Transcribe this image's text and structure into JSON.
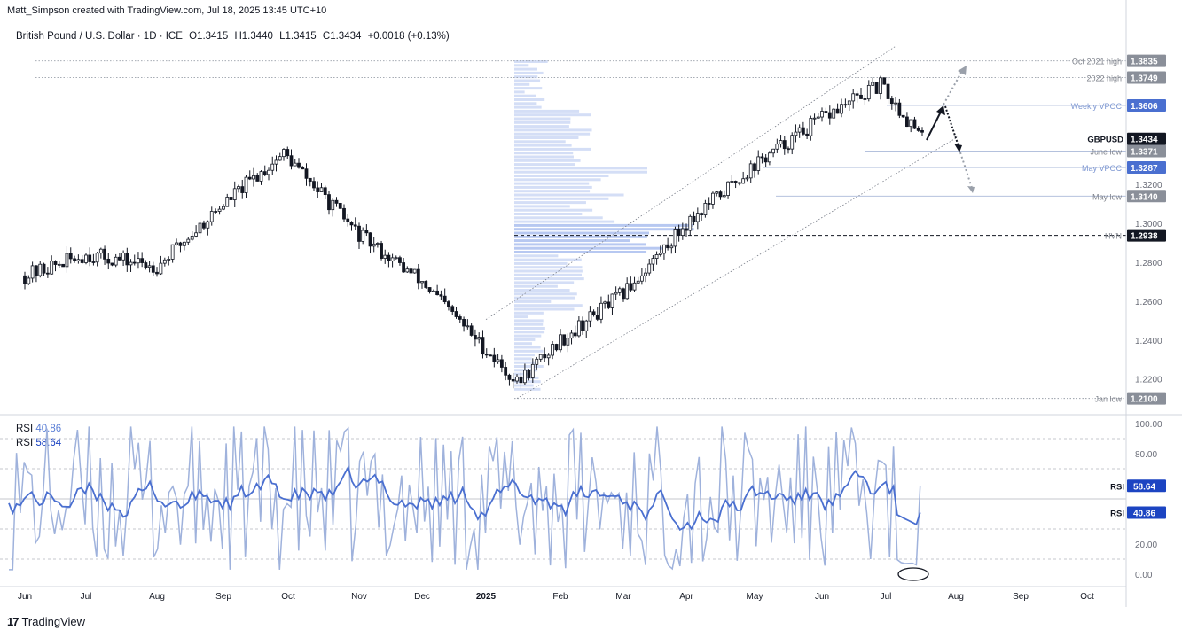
{
  "header": {
    "created_by": "Matt_Simpson created with TradingView.com, Jul 18, 2025 13:45 UTC+10",
    "symbol_line": "British Pound / U.S. Dollar · 1D · ICE",
    "open": "O1.3415",
    "high": "H1.3440",
    "low": "L1.3415",
    "close": "C1.3434",
    "change": "+0.0018 (+0.13%)"
  },
  "footer": {
    "brand": "TradingView"
  },
  "colors": {
    "candle": "#131722",
    "volume_profile": "#9fb6ec",
    "rsi_light": "#9fb2dc",
    "rsi_dark": "#4a6fd0",
    "label_bg": "#8a8f99",
    "current_bg": "#131722"
  },
  "chart_data": [
    {
      "type": "candlestick",
      "title": "British Pound / U.S. Dollar · 1D · ICE",
      "x_ticks": [
        "Jun",
        "Jul",
        "Aug",
        "Sep",
        "Oct",
        "Nov",
        "Dec",
        "2025",
        "Feb",
        "Mar",
        "Apr",
        "May",
        "Jun",
        "Jul",
        "Aug",
        "Sep",
        "Oct"
      ],
      "y_ticks": [
        "1.2200",
        "1.2400",
        "1.2600",
        "1.2800",
        "1.3000",
        "1.3200"
      ],
      "ylim": [
        1.203,
        1.392
      ],
      "series_name": "GBPUSD",
      "key_points": [
        {
          "month": "Jun",
          "price": 1.273
        },
        {
          "month": "Jul",
          "price": 1.284
        },
        {
          "month": "Aug",
          "price": 1.278
        },
        {
          "month": "Sep",
          "price": 1.31
        },
        {
          "month": "Oct",
          "price": 1.336
        },
        {
          "month": "Nov",
          "price": 1.294
        },
        {
          "month": "Dec",
          "price": 1.27
        },
        {
          "month": "2025",
          "price": 1.218
        },
        {
          "month": "Feb",
          "price": 1.24
        },
        {
          "month": "Mar",
          "price": 1.264
        },
        {
          "month": "Apr",
          "price": 1.3
        },
        {
          "month": "May",
          "price": 1.33
        },
        {
          "month": "Jun",
          "price": 1.354
        },
        {
          "month": "Jul",
          "price": 1.371
        },
        {
          "month": "Jul",
          "price": 1.3434
        }
      ],
      "levels": [
        {
          "label": "Oct 2021 high",
          "value": "1.3835"
        },
        {
          "label": "2022 high",
          "value": "1.3749"
        },
        {
          "label": "Weekly VPOC",
          "value": "1.3606"
        },
        {
          "label": "GBPUSD",
          "value": "1.3434"
        },
        {
          "label": "June low",
          "value": "1.3371"
        },
        {
          "label": "May VPOC",
          "value": "1.3287"
        },
        {
          "label": "May low",
          "value": "1.3140"
        },
        {
          "label": "HVN",
          "value": "1.2938"
        },
        {
          "label": "Jan low",
          "value": "1.2100"
        }
      ]
    },
    {
      "type": "line",
      "title": "RSI",
      "y_ticks": [
        "100.00",
        "80.00",
        "20.00",
        "0.00"
      ],
      "ylim": [
        0,
        100
      ],
      "series": [
        {
          "name": "RSI",
          "value": "40.86"
        },
        {
          "name": "RSI",
          "value": "58.64"
        }
      ]
    }
  ]
}
